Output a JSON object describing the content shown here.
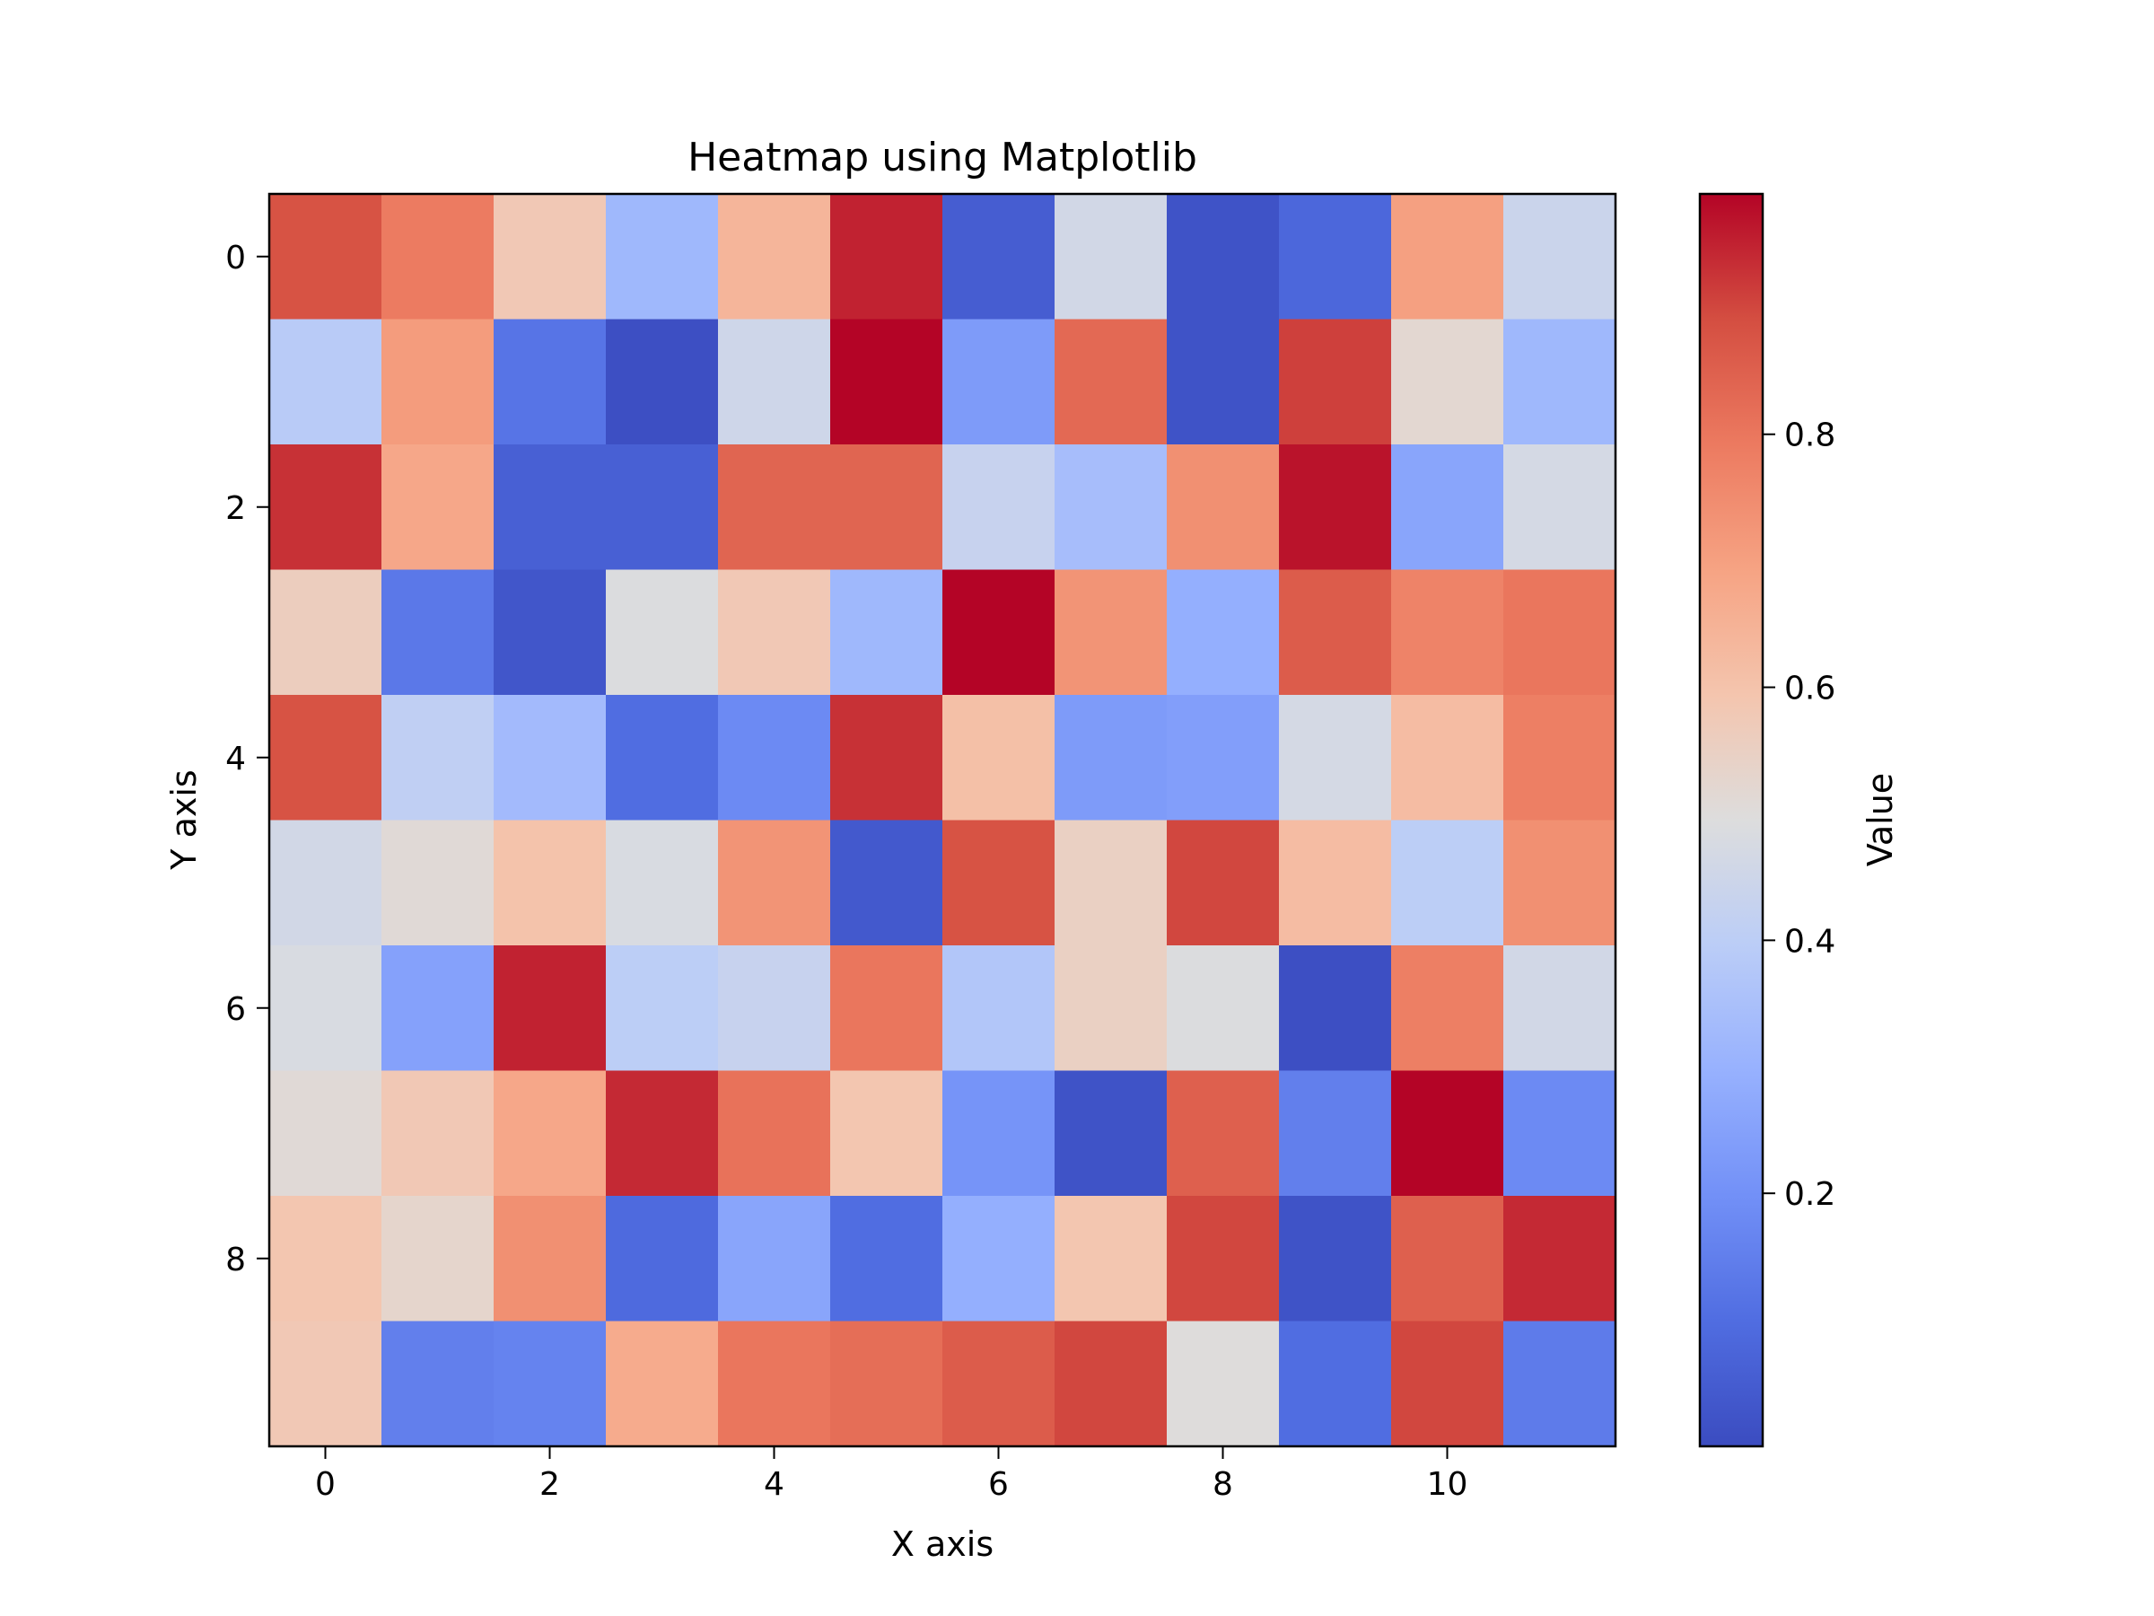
{
  "chart_data": {
    "type": "heatmap",
    "title": "Heatmap using Matplotlib",
    "xlabel": "X axis",
    "ylabel": "Y axis",
    "colorbar_label": "Value",
    "colormap": "coolwarm",
    "rows": 10,
    "cols": 12,
    "x_ticks": [
      0,
      2,
      4,
      6,
      8,
      10
    ],
    "y_ticks": [
      0,
      2,
      4,
      6,
      8
    ],
    "colorbar_ticks": [
      0.2,
      0.4,
      0.6,
      0.8
    ],
    "colorbar_ticks_text": [
      "0.2",
      "0.4",
      "0.6",
      "0.8"
    ],
    "vmin": 0.0,
    "vmax": 0.99,
    "values": [
      [
        0.88,
        0.79,
        0.58,
        0.32,
        0.64,
        0.95,
        0.05,
        0.46,
        0.02,
        0.08,
        0.7,
        0.44
      ],
      [
        0.39,
        0.71,
        0.12,
        0.01,
        0.45,
        0.99,
        0.23,
        0.83,
        0.02,
        0.91,
        0.52,
        0.32
      ],
      [
        0.93,
        0.68,
        0.06,
        0.06,
        0.84,
        0.84,
        0.43,
        0.34,
        0.74,
        0.97,
        0.26,
        0.47
      ],
      [
        0.56,
        0.13,
        0.03,
        0.49,
        0.58,
        0.32,
        0.99,
        0.73,
        0.29,
        0.86,
        0.77,
        0.8
      ],
      [
        0.88,
        0.41,
        0.33,
        0.1,
        0.18,
        0.93,
        0.61,
        0.23,
        0.24,
        0.47,
        0.62,
        0.78
      ],
      [
        0.46,
        0.51,
        0.6,
        0.48,
        0.73,
        0.04,
        0.88,
        0.55,
        0.9,
        0.62,
        0.4,
        0.74
      ],
      [
        0.48,
        0.25,
        0.95,
        0.4,
        0.43,
        0.8,
        0.37,
        0.55,
        0.49,
        0.01,
        0.78,
        0.46
      ],
      [
        0.51,
        0.58,
        0.68,
        0.94,
        0.81,
        0.59,
        0.21,
        0.02,
        0.85,
        0.15,
        0.99,
        0.18
      ],
      [
        0.59,
        0.53,
        0.74,
        0.09,
        0.26,
        0.1,
        0.29,
        0.59,
        0.9,
        0.02,
        0.85,
        0.94
      ],
      [
        0.58,
        0.15,
        0.16,
        0.67,
        0.8,
        0.82,
        0.86,
        0.9,
        0.5,
        0.1,
        0.9,
        0.14
      ]
    ]
  }
}
